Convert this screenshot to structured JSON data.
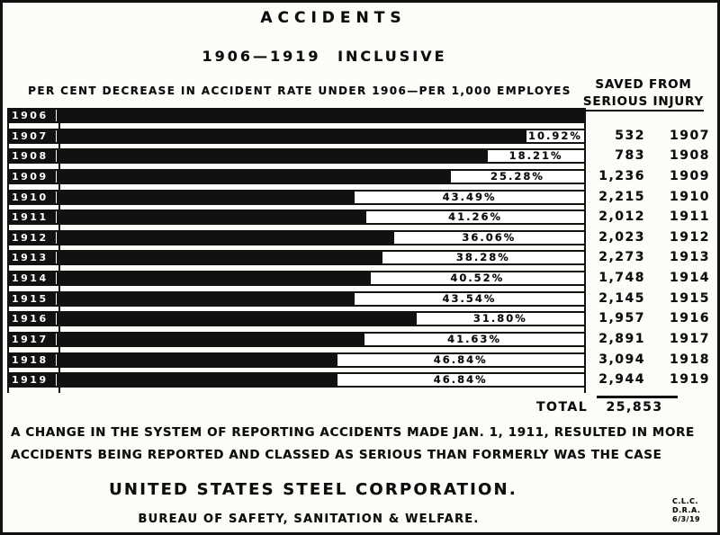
{
  "title": "ACCIDENTS",
  "subtitle": "1906—1919 INCLUSIVE",
  "axis_caption": "PER CENT DECREASE IN ACCIDENT RATE UNDER 1906—PER 1,000 EMPLOYES",
  "saved_header": {
    "line1": "SAVED FROM",
    "line2": "SERIOUS INJURY"
  },
  "total": {
    "label": "TOTAL",
    "value": "25,853"
  },
  "footnote": {
    "line1": "A CHANGE IN THE SYSTEM OF REPORTING ACCIDENTS MADE JAN. 1, 1911, RESULTED IN MORE",
    "line2": "ACCIDENTS BEING REPORTED AND CLASSED AS SERIOUS THAN FORMERLY WAS THE CASE"
  },
  "org_name": "UNITED STATES STEEL CORPORATION.",
  "org_dept": "BUREAU OF SAFETY, SANITATION & WELFARE.",
  "credits": {
    "line1": "C.L.C.",
    "line2": "D.R.A.",
    "line3": "6/3/19"
  },
  "rows": [
    {
      "year": "1906",
      "pct_label": "",
      "saved": "",
      "year_right": ""
    },
    {
      "year": "1907",
      "pct_label": "10.92%",
      "saved": "532",
      "year_right": "1907"
    },
    {
      "year": "1908",
      "pct_label": "18.21%",
      "saved": "783",
      "year_right": "1908"
    },
    {
      "year": "1909",
      "pct_label": "25.28%",
      "saved": "1,236",
      "year_right": "1909"
    },
    {
      "year": "1910",
      "pct_label": "43.49%",
      "saved": "2,215",
      "year_right": "1910"
    },
    {
      "year": "1911",
      "pct_label": "41.26%",
      "saved": "2,012",
      "year_right": "1911"
    },
    {
      "year": "1912",
      "pct_label": "36.06%",
      "saved": "2,023",
      "year_right": "1912"
    },
    {
      "year": "1913",
      "pct_label": "38.28%",
      "saved": "2,273",
      "year_right": "1913"
    },
    {
      "year": "1914",
      "pct_label": "40.52%",
      "saved": "1,748",
      "year_right": "1914"
    },
    {
      "year": "1915",
      "pct_label": "43.54%",
      "saved": "2,145",
      "year_right": "1915"
    },
    {
      "year": "1916",
      "pct_label": "31.80%",
      "saved": "1,957",
      "year_right": "1916"
    },
    {
      "year": "1917",
      "pct_label": "41.63%",
      "saved": "2,891",
      "year_right": "1917"
    },
    {
      "year": "1918",
      "pct_label": "46.84%",
      "saved": "3,094",
      "year_right": "1918"
    },
    {
      "year": "1919",
      "pct_label": "46.84%",
      "saved": "2,944",
      "year_right": "1919"
    }
  ],
  "chart_data": {
    "type": "bar",
    "orientation": "horizontal",
    "title": "ACCIDENTS",
    "subtitle": "1906—1919 INCLUSIVE",
    "xlabel": "PER CENT DECREASE IN ACCIDENT RATE UNDER 1906—PER 1,000 EMPLOYES",
    "categories": [
      "1906",
      "1907",
      "1908",
      "1909",
      "1910",
      "1911",
      "1912",
      "1913",
      "1914",
      "1915",
      "1916",
      "1917",
      "1918",
      "1919"
    ],
    "series": [
      {
        "name": "Per cent decrease in accident rate under 1906 (per 1,000 employes)",
        "unit": "%",
        "values": [
          0,
          10.92,
          18.21,
          25.28,
          43.49,
          41.26,
          36.06,
          38.28,
          40.52,
          43.54,
          31.8,
          41.63,
          46.84,
          46.84
        ]
      },
      {
        "name": "Saved from serious injury",
        "unit": "employees",
        "values": [
          null,
          532,
          783,
          1236,
          2215,
          2012,
          2023,
          2273,
          1748,
          2145,
          1957,
          2891,
          3094,
          2944
        ]
      }
    ],
    "total_saved": 25853,
    "bar_style": "black fill = remaining accident rate vs 1906 baseline; white remainder labeled with % decrease",
    "xlim": [
      0,
      100
    ],
    "legend": "none",
    "grid": "off",
    "note": "A change in the system of reporting accidents made Jan. 1, 1911, resulted in more accidents being reported and classed as serious than formerly was the case",
    "source": "United States Steel Corporation, Bureau of Safety, Sanitation & Welfare"
  }
}
